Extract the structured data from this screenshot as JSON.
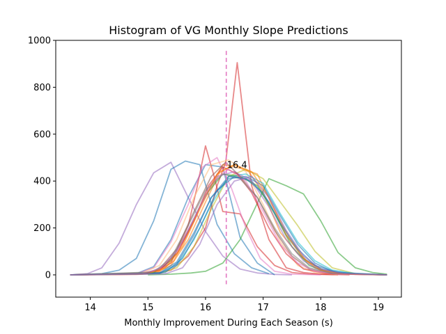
{
  "chart_data": {
    "type": "line",
    "title": "Histogram of VG Monthly Slope Predictions",
    "xlabel": "Monthly Improvement During Each Season (s)",
    "ylabel": "",
    "xlim": [
      13.4,
      19.4
    ],
    "ylim": [
      -95,
      1000
    ],
    "xticks": [
      14,
      15,
      16,
      17,
      18,
      19
    ],
    "yticks": [
      0,
      200,
      400,
      600,
      800,
      1000
    ],
    "grid": false,
    "line_opacity": 0.55,
    "vline": {
      "x": 16.36,
      "y_range": [
        -40,
        955
      ],
      "color": "#e377c2",
      "label": "16.4",
      "label_y": 470
    },
    "series": [
      {
        "color": "#9467bd",
        "x": [
          13.65,
          13.95,
          14.2,
          14.5,
          14.8,
          15.1,
          15.4,
          15.7,
          16.0,
          16.3,
          16.6,
          16.9,
          17.2,
          17.5
        ],
        "values": [
          0,
          5,
          30,
          135,
          300,
          435,
          480,
          330,
          185,
          80,
          25,
          8,
          2,
          0
        ]
      },
      {
        "color": "#1f77b4",
        "x": [
          13.65,
          14.2,
          14.5,
          14.8,
          15.1,
          15.4,
          15.65,
          15.9,
          16.2,
          16.5,
          16.8,
          17.1
        ],
        "values": [
          0,
          5,
          20,
          70,
          230,
          450,
          485,
          470,
          215,
          90,
          30,
          5
        ]
      },
      {
        "color": "#1f77b4",
        "x": [
          13.65,
          14.8,
          15.1,
          15.4,
          15.7,
          16.0,
          16.3,
          16.6,
          16.9,
          17.2
        ],
        "values": [
          0,
          5,
          35,
          150,
          330,
          470,
          460,
          160,
          50,
          0
        ]
      },
      {
        "color": "#2ca02c",
        "x": [
          15.0,
          15.4,
          15.75,
          16.0,
          16.3,
          16.6,
          16.85,
          17.1,
          17.4,
          17.7,
          18.0,
          18.3,
          18.6,
          18.9,
          19.15
        ],
        "values": [
          0,
          3,
          8,
          15,
          50,
          150,
          280,
          410,
          380,
          345,
          230,
          95,
          30,
          10,
          3
        ]
      },
      {
        "color": "#d62728",
        "x": [
          13.65,
          14.8,
          15.1,
          15.4,
          15.7,
          16.0,
          16.2,
          16.35,
          16.55,
          16.8,
          17.1,
          17.4,
          17.7,
          18.0,
          18.5
        ],
        "values": [
          0,
          2,
          5,
          20,
          80,
          200,
          380,
          480,
          905,
          380,
          150,
          30,
          10,
          3,
          0
        ]
      },
      {
        "color": "#d62728",
        "x": [
          13.65,
          14.8,
          15.1,
          15.4,
          15.7,
          15.85,
          16.0,
          16.15,
          16.3,
          16.6,
          16.9,
          17.2,
          17.5,
          17.8,
          18.3
        ],
        "values": [
          0,
          3,
          10,
          50,
          210,
          370,
          550,
          420,
          270,
          260,
          120,
          40,
          10,
          3,
          0
        ]
      },
      {
        "color": "#e377c2",
        "x": [
          13.65,
          14.8,
          15.1,
          15.4,
          15.7,
          15.95,
          16.2,
          16.45,
          16.7,
          16.95,
          17.2,
          17.5,
          18.0
        ],
        "values": [
          0,
          5,
          30,
          140,
          300,
          460,
          500,
          370,
          200,
          70,
          15,
          3,
          0
        ]
      },
      {
        "color": "#ff7f0e",
        "x": [
          13.65,
          14.9,
          15.2,
          15.45,
          15.7,
          16.0,
          16.3,
          16.6,
          16.9,
          17.15,
          17.45,
          17.75,
          18.05,
          18.4,
          18.9,
          19.15
        ],
        "values": [
          0,
          3,
          15,
          60,
          180,
          340,
          470,
          455,
          430,
          300,
          160,
          60,
          20,
          5,
          1,
          0
        ]
      },
      {
        "color": "#ff7f0e",
        "x": [
          13.65,
          15.1,
          15.4,
          15.7,
          16.0,
          16.25,
          16.5,
          16.75,
          17.0,
          17.3,
          17.6,
          17.9,
          18.2,
          18.6,
          19.15
        ],
        "values": [
          0,
          5,
          40,
          150,
          310,
          440,
          470,
          440,
          350,
          180,
          90,
          30,
          8,
          2,
          0
        ]
      },
      {
        "color": "#ffbb78",
        "x": [
          13.65,
          14.9,
          15.2,
          15.5,
          15.8,
          16.1,
          16.4,
          16.7,
          17.0,
          17.3,
          17.6,
          17.9,
          18.3
        ],
        "values": [
          0,
          8,
          40,
          150,
          330,
          470,
          490,
          440,
          300,
          140,
          40,
          10,
          0
        ]
      },
      {
        "color": "#bcbd22",
        "x": [
          13.65,
          15.2,
          15.5,
          15.8,
          16.1,
          16.4,
          16.7,
          17.0,
          17.3,
          17.6,
          17.9,
          18.2,
          18.6,
          19.15
        ],
        "values": [
          0,
          5,
          30,
          120,
          280,
          420,
          450,
          410,
          310,
          210,
          100,
          30,
          5,
          0
        ]
      },
      {
        "color": "#17becf",
        "x": [
          13.65,
          15.2,
          15.5,
          15.8,
          16.1,
          16.4,
          16.7,
          17.0,
          17.3,
          17.6,
          17.9,
          18.2,
          18.6,
          19.15
        ],
        "values": [
          0,
          5,
          40,
          150,
          300,
          420,
          430,
          390,
          260,
          140,
          60,
          20,
          5,
          0
        ]
      },
      {
        "color": "#1f77b4",
        "x": [
          13.65,
          15.2,
          15.5,
          15.8,
          16.1,
          16.4,
          16.7,
          17.0,
          17.3,
          17.6,
          17.9,
          18.2,
          18.6,
          19.15
        ],
        "values": [
          0,
          8,
          55,
          180,
          330,
          410,
          420,
          380,
          250,
          130,
          50,
          15,
          4,
          0
        ]
      },
      {
        "color": "#1f77b4",
        "x": [
          13.65,
          15.3,
          15.6,
          15.9,
          16.2,
          16.5,
          16.8,
          17.1,
          17.4,
          17.7,
          18.0,
          18.4,
          19.15
        ],
        "values": [
          0,
          10,
          70,
          200,
          360,
          420,
          400,
          310,
          170,
          70,
          25,
          5,
          0
        ]
      },
      {
        "color": "#2ca02c",
        "x": [
          13.65,
          15.1,
          15.4,
          15.7,
          16.0,
          16.3,
          16.6,
          16.9,
          17.2,
          17.5,
          17.8,
          18.1,
          18.5,
          19.15
        ],
        "values": [
          0,
          10,
          60,
          190,
          340,
          430,
          420,
          380,
          260,
          120,
          40,
          12,
          3,
          0
        ]
      },
      {
        "color": "#8c564b",
        "x": [
          13.65,
          14.9,
          15.2,
          15.5,
          15.8,
          16.1,
          16.35,
          16.6,
          16.9,
          17.2,
          17.5,
          17.8,
          18.2,
          19.15
        ],
        "values": [
          0,
          5,
          25,
          110,
          270,
          420,
          480,
          420,
          330,
          190,
          80,
          25,
          5,
          0
        ]
      },
      {
        "color": "#9467bd",
        "x": [
          13.65,
          15.0,
          15.3,
          15.6,
          15.9,
          16.2,
          16.5,
          16.8,
          17.1,
          17.4,
          17.7,
          18.0,
          18.4,
          19.15
        ],
        "values": [
          0,
          8,
          40,
          140,
          290,
          420,
          440,
          400,
          290,
          150,
          60,
          18,
          4,
          0
        ]
      },
      {
        "color": "#d62728",
        "x": [
          13.65,
          14.9,
          15.2,
          15.5,
          15.8,
          16.05,
          16.3,
          16.55,
          16.8,
          17.1,
          17.4,
          17.7,
          18.1,
          19.15
        ],
        "values": [
          0,
          5,
          20,
          90,
          230,
          380,
          460,
          430,
          350,
          200,
          90,
          25,
          5,
          0
        ]
      },
      {
        "color": "#e377c2",
        "x": [
          13.65,
          14.9,
          15.2,
          15.5,
          15.8,
          16.1,
          16.4,
          16.7,
          17.0,
          17.3,
          17.6,
          17.9,
          18.3,
          19.15
        ],
        "values": [
          0,
          6,
          25,
          100,
          240,
          390,
          450,
          400,
          270,
          130,
          50,
          15,
          3,
          0
        ]
      },
      {
        "color": "#7f7f7f",
        "x": [
          13.65,
          15.1,
          15.4,
          15.7,
          16.0,
          16.3,
          16.6,
          16.9,
          17.2,
          17.5,
          17.8,
          18.2,
          19.15
        ],
        "values": [
          0,
          12,
          70,
          210,
          360,
          430,
          410,
          330,
          200,
          90,
          30,
          6,
          0
        ]
      },
      {
        "color": "#ff7f0e",
        "x": [
          13.65,
          15.0,
          15.3,
          15.6,
          15.9,
          16.2,
          16.5,
          16.8,
          17.1,
          17.4,
          17.7,
          18.0,
          18.4,
          19.15
        ],
        "values": [
          0,
          5,
          30,
          120,
          280,
          430,
          470,
          440,
          330,
          170,
          70,
          20,
          4,
          0
        ]
      },
      {
        "color": "#1f77b4",
        "x": [
          13.65,
          15.2,
          15.5,
          15.8,
          16.1,
          16.4,
          16.7,
          17.0,
          17.3,
          17.6,
          17.9,
          18.3,
          19.15
        ],
        "values": [
          0,
          6,
          45,
          170,
          330,
          420,
          410,
          350,
          220,
          110,
          40,
          10,
          0
        ]
      },
      {
        "color": "#9467bd",
        "x": [
          13.65,
          15.3,
          15.6,
          15.9,
          16.2,
          16.5,
          16.8,
          17.1,
          17.4,
          17.7,
          18.0,
          18.4,
          19.15
        ],
        "values": [
          0,
          4,
          30,
          130,
          300,
          400,
          420,
          330,
          190,
          80,
          25,
          5,
          0
        ]
      }
    ]
  }
}
